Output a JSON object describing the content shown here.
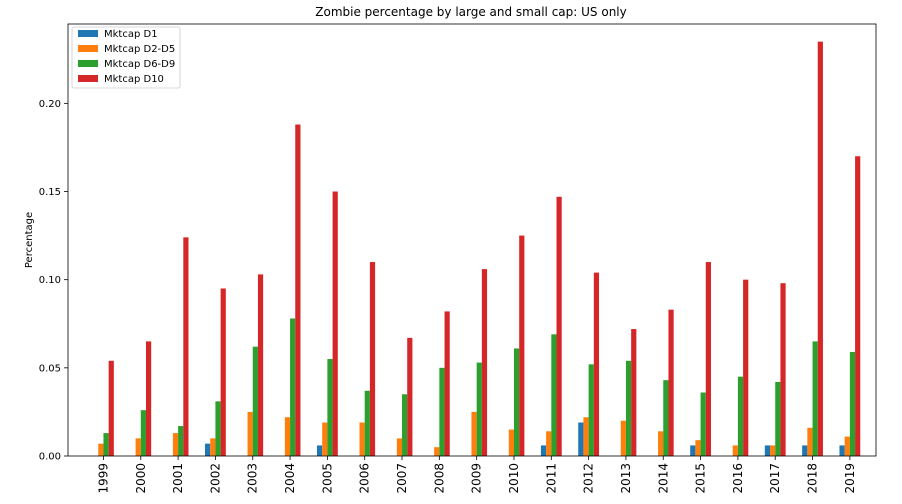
{
  "chart_data": {
    "type": "bar",
    "title": "Zombie percentage by large and small cap: US only",
    "xlabel": "",
    "ylabel": "Percentage",
    "ylim": [
      0,
      0.245
    ],
    "yticks": [
      "0.00",
      "0.05",
      "0.10",
      "0.15",
      "0.20"
    ],
    "grid": false,
    "legend_position": "top-left",
    "categories": [
      "1999",
      "2000",
      "2001",
      "2002",
      "2003",
      "2004",
      "2005",
      "2006",
      "2007",
      "2008",
      "2009",
      "2010",
      "2011",
      "2012",
      "2013",
      "2014",
      "2015",
      "2016",
      "2017",
      "2018",
      "2019"
    ],
    "series": [
      {
        "name": "Mktcap D1",
        "color": "#1f77b4",
        "values": [
          0,
          0,
          0,
          0.007,
          0,
          0,
          0.006,
          0,
          0,
          0,
          0,
          0,
          0.006,
          0.019,
          0,
          0,
          0.006,
          0,
          0.006,
          0.006,
          0.006
        ]
      },
      {
        "name": "Mktcap D2-D5",
        "color": "#ff7f0e",
        "values": [
          0.007,
          0.01,
          0.013,
          0.01,
          0.025,
          0.022,
          0.019,
          0.019,
          0.01,
          0.005,
          0.025,
          0.015,
          0.014,
          0.022,
          0.02,
          0.014,
          0.009,
          0.006,
          0.006,
          0.016,
          0.011
        ]
      },
      {
        "name": "Mktcap D6-D9",
        "color": "#2ca02c",
        "values": [
          0.013,
          0.026,
          0.017,
          0.031,
          0.062,
          0.078,
          0.055,
          0.037,
          0.035,
          0.05,
          0.053,
          0.061,
          0.069,
          0.052,
          0.054,
          0.043,
          0.036,
          0.045,
          0.042,
          0.065,
          0.059
        ]
      },
      {
        "name": "Mktcap D10",
        "color": "#d62728",
        "values": [
          0.054,
          0.065,
          0.124,
          0.095,
          0.103,
          0.188,
          0.15,
          0.11,
          0.067,
          0.082,
          0.106,
          0.125,
          0.147,
          0.104,
          0.072,
          0.083,
          0.11,
          0.1,
          0.098,
          0.235,
          0.17
        ]
      }
    ]
  }
}
